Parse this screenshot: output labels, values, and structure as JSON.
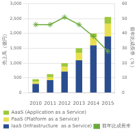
{
  "chart_data": {
    "type": "bar",
    "stacked": true,
    "categories": [
      "2010",
      "2011",
      "2012",
      "2013",
      "2014",
      "2015"
    ],
    "series": [
      {
        "name": "IaaS (Infrastructure  as a Service)",
        "color": "#2a4d8f",
        "values": [
          300,
          430,
          720,
          1100,
          1600,
          1900
        ]
      },
      {
        "name": "PaaS (Platform as a Service)",
        "color": "#e8e050",
        "values": [
          80,
          100,
          160,
          250,
          270,
          430
        ]
      },
      {
        "name": "AaaS (Application as a Service)",
        "color": "#9dc83a",
        "values": [
          80,
          100,
          120,
          150,
          130,
          227
        ]
      },
      {
        "name": "前年比成長率",
        "type": "line",
        "axis": "y2",
        "color": "#6aaa3a",
        "marker": "star",
        "values": [
          46,
          46,
          51,
          46,
          38,
          28
        ]
      }
    ],
    "ylabel": "売上高（億円）",
    "y2label": "前年比成長率（％）",
    "ylim": [
      0,
      3000
    ],
    "yticks": [
      0,
      500,
      {
        "value": 1000,
        "label": "1,000"
      },
      {
        "value": 1500,
        "label": "1,500"
      },
      {
        "value": 2000,
        "label": "2,000"
      },
      {
        "value": 2500,
        "label": "2,500"
      },
      {
        "value": 3000,
        "label": "3,000"
      }
    ],
    "y2lim": [
      0,
      60
    ],
    "y2ticks": [
      0,
      10,
      20,
      30,
      40,
      50,
      60
    ],
    "grid": true,
    "legend": "bottom"
  }
}
